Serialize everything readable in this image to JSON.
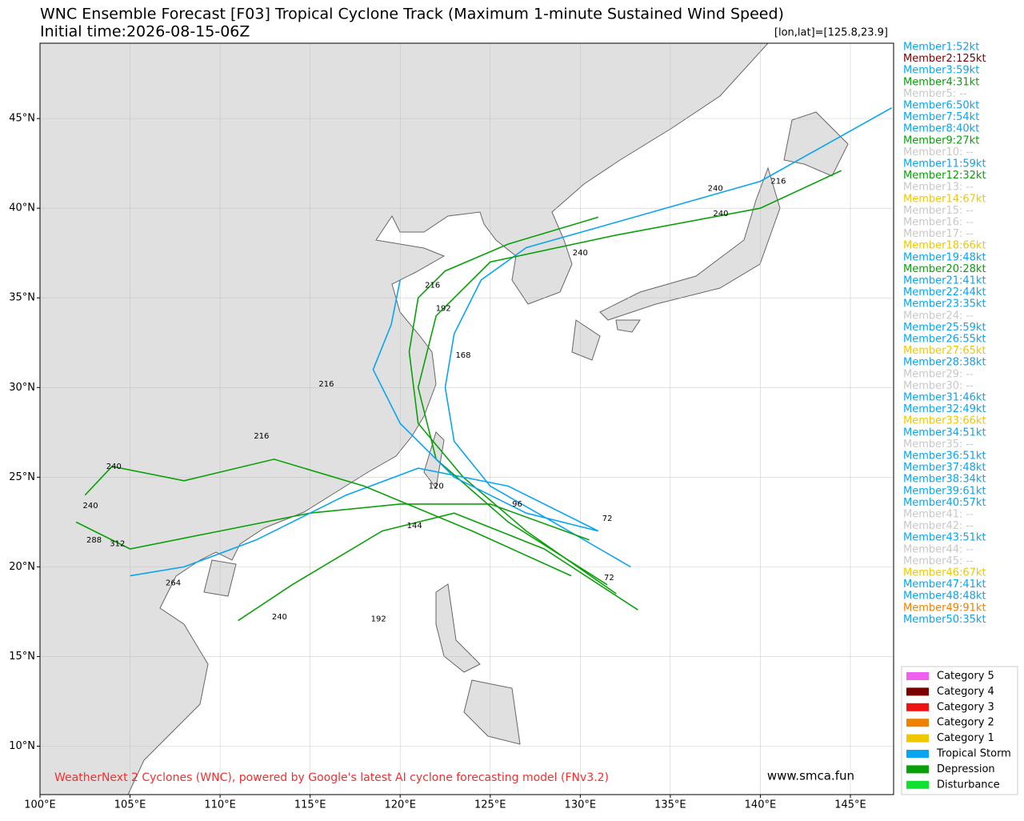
{
  "map": {
    "title": "WNC Ensemble Forecast [F03] Tropical Cyclone Track (Maximum 1-minute Sustained Wind Speed)",
    "subtitle": "Initial time:2026-08-15-06Z",
    "position_note": "[lon,lat]=[125.8,23.9]",
    "credit": "WeatherNext 2 Cyclones (WNC), powered by Google's latest AI cyclone forecasting model (FNv3.2)",
    "website": "www.smca.fun",
    "xlim": [
      100,
      147.4
    ],
    "ylim": [
      7.3,
      49.2
    ],
    "xticks": [
      {
        "value": 100,
        "label": "100°E"
      },
      {
        "value": 105,
        "label": "105°E"
      },
      {
        "value": 110,
        "label": "110°E"
      },
      {
        "value": 115,
        "label": "115°E"
      },
      {
        "value": 120,
        "label": "120°E"
      },
      {
        "value": 125,
        "label": "125°E"
      },
      {
        "value": 130,
        "label": "130°E"
      },
      {
        "value": 135,
        "label": "135°E"
      },
      {
        "value": 140,
        "label": "140°E"
      },
      {
        "value": 145,
        "label": "145°E"
      }
    ],
    "yticks": [
      {
        "value": 10,
        "label": "10°N"
      },
      {
        "value": 15,
        "label": "15°N"
      },
      {
        "value": 20,
        "label": "20°N"
      },
      {
        "value": 25,
        "label": "25°N"
      },
      {
        "value": 30,
        "label": "30°N"
      },
      {
        "value": 35,
        "label": "35°N"
      },
      {
        "value": 40,
        "label": "40°N"
      },
      {
        "value": 45,
        "label": "45°N"
      }
    ],
    "grid": true,
    "tracks": [
      {
        "color": "#0aa5f0",
        "lon": [
          132.8,
          128.5,
          125,
          123,
          122.5,
          123,
          124.5,
          127,
          133,
          140,
          147.3
        ],
        "lat": [
          20,
          22.5,
          24.5,
          27,
          30,
          33,
          36,
          37.8,
          39.5,
          41.5,
          45.6
        ]
      },
      {
        "color": "#0aa00a",
        "lon": [
          132,
          127,
          123.5,
          121,
          120.5,
          121,
          122.5,
          126,
          131
        ],
        "lat": [
          18.5,
          22,
          25,
          28,
          32,
          35,
          36.5,
          38,
          39.5
        ]
      },
      {
        "color": "#0aa00a",
        "lon": [
          130.5,
          125,
          120,
          115,
          110,
          105,
          102
        ],
        "lat": [
          21.5,
          23.5,
          23.5,
          23,
          22,
          21,
          22.5
        ]
      },
      {
        "color": "#0aa5f0",
        "lon": [
          131,
          126,
          121,
          117,
          112,
          108,
          105
        ],
        "lat": [
          22,
          24.5,
          25.5,
          24,
          21.5,
          20,
          19.5
        ]
      },
      {
        "color": "#0aa00a",
        "lon": [
          133.2,
          128,
          123,
          119,
          114,
          111
        ],
        "lat": [
          17.6,
          21,
          23,
          22,
          19,
          17
        ]
      },
      {
        "color": "#0aa00a",
        "lon": [
          131.5,
          126,
          122,
          121,
          122,
          125,
          132,
          140,
          144.5
        ],
        "lat": [
          19,
          22.5,
          26,
          30,
          34,
          37,
          38.5,
          40,
          42.1
        ]
      },
      {
        "color": "#0aa5f0",
        "lon": [
          131,
          127,
          123,
          120,
          118.5,
          119.5,
          120
        ],
        "lat": [
          22,
          23,
          25,
          28,
          31,
          33.5,
          36
        ]
      },
      {
        "color": "#0aa00a",
        "lon": [
          129.5,
          124,
          118,
          113,
          108,
          104,
          102.5
        ],
        "lat": [
          19.5,
          22,
          24.5,
          26,
          24.8,
          25.6,
          24
        ]
      }
    ],
    "hour_labels": [
      {
        "label": "72",
        "lon": 131.5,
        "lat": 22.7
      },
      {
        "label": "72",
        "lon": 131.6,
        "lat": 19.4
      },
      {
        "label": "96",
        "lon": 126.5,
        "lat": 23.5
      },
      {
        "label": "120",
        "lon": 122,
        "lat": 24.5
      },
      {
        "label": "144",
        "lon": 120.8,
        "lat": 22.3
      },
      {
        "label": "168",
        "lon": 123.5,
        "lat": 31.8
      },
      {
        "label": "192",
        "lon": 122.4,
        "lat": 34.4
      },
      {
        "label": "216",
        "lon": 121.8,
        "lat": 35.7
      },
      {
        "label": "240",
        "lon": 130,
        "lat": 37.5
      },
      {
        "label": "240",
        "lon": 137.5,
        "lat": 41.1
      },
      {
        "label": "216",
        "lon": 141,
        "lat": 41.5
      },
      {
        "label": "240",
        "lon": 137.8,
        "lat": 39.7
      },
      {
        "label": "192",
        "lon": 118.8,
        "lat": 17.1
      },
      {
        "label": "240",
        "lon": 113.3,
        "lat": 17.2
      },
      {
        "label": "264",
        "lon": 107.4,
        "lat": 19.1
      },
      {
        "label": "288",
        "lon": 103,
        "lat": 21.5
      },
      {
        "label": "312",
        "lon": 104.3,
        "lat": 21.3
      },
      {
        "label": "240",
        "lon": 102.8,
        "lat": 23.4
      },
      {
        "label": "240",
        "lon": 104.1,
        "lat": 25.6
      },
      {
        "label": "216",
        "lon": 115.9,
        "lat": 30.2
      },
      {
        "label": "216",
        "lon": 112.3,
        "lat": 27.3
      }
    ],
    "members": [
      {
        "label": "Member1:52kt",
        "color": "#0aa5f0"
      },
      {
        "label": "Member2:125kt",
        "color": "#7a0000"
      },
      {
        "label": "Member3:59kt",
        "color": "#0aa5f0"
      },
      {
        "label": "Member4:31kt",
        "color": "#0aa00a"
      },
      {
        "label": "Member5: --",
        "color": "#c8c8c8"
      },
      {
        "label": "Member6:50kt",
        "color": "#0aa5f0"
      },
      {
        "label": "Member7:54kt",
        "color": "#0aa5f0"
      },
      {
        "label": "Member8:40kt",
        "color": "#0aa5f0"
      },
      {
        "label": "Member9:27kt",
        "color": "#0aa00a"
      },
      {
        "label": "Member10: --",
        "color": "#c8c8c8"
      },
      {
        "label": "Member11:59kt",
        "color": "#0aa5f0"
      },
      {
        "label": "Member12:32kt",
        "color": "#0aa00a"
      },
      {
        "label": "Member13: --",
        "color": "#c8c8c8"
      },
      {
        "label": "Member14:67kt",
        "color": "#f0c800"
      },
      {
        "label": "Member15: --",
        "color": "#c8c8c8"
      },
      {
        "label": "Member16: --",
        "color": "#c8c8c8"
      },
      {
        "label": "Member17: --",
        "color": "#c8c8c8"
      },
      {
        "label": "Member18:66kt",
        "color": "#f0c800"
      },
      {
        "label": "Member19:48kt",
        "color": "#0aa5f0"
      },
      {
        "label": "Member20:28kt",
        "color": "#0aa00a"
      },
      {
        "label": "Member21:41kt",
        "color": "#0aa5f0"
      },
      {
        "label": "Member22:44kt",
        "color": "#0aa5f0"
      },
      {
        "label": "Member23:35kt",
        "color": "#0aa5f0"
      },
      {
        "label": "Member24: --",
        "color": "#c8c8c8"
      },
      {
        "label": "Member25:59kt",
        "color": "#0aa5f0"
      },
      {
        "label": "Member26:55kt",
        "color": "#0aa5f0"
      },
      {
        "label": "Member27:65kt",
        "color": "#f0c800"
      },
      {
        "label": "Member28:38kt",
        "color": "#0aa5f0"
      },
      {
        "label": "Member29: --",
        "color": "#c8c8c8"
      },
      {
        "label": "Member30: --",
        "color": "#c8c8c8"
      },
      {
        "label": "Member31:46kt",
        "color": "#0aa5f0"
      },
      {
        "label": "Member32:49kt",
        "color": "#0aa5f0"
      },
      {
        "label": "Member33:66kt",
        "color": "#f0c800"
      },
      {
        "label": "Member34:51kt",
        "color": "#0aa5f0"
      },
      {
        "label": "Member35: --",
        "color": "#c8c8c8"
      },
      {
        "label": "Member36:51kt",
        "color": "#0aa5f0"
      },
      {
        "label": "Member37:48kt",
        "color": "#0aa5f0"
      },
      {
        "label": "Member38:34kt",
        "color": "#0aa5f0"
      },
      {
        "label": "Member39:61kt",
        "color": "#0aa5f0"
      },
      {
        "label": "Member40:57kt",
        "color": "#0aa5f0"
      },
      {
        "label": "Member41: --",
        "color": "#c8c8c8"
      },
      {
        "label": "Member42: --",
        "color": "#c8c8c8"
      },
      {
        "label": "Member43:51kt",
        "color": "#0aa5f0"
      },
      {
        "label": "Member44: --",
        "color": "#c8c8c8"
      },
      {
        "label": "Member45: --",
        "color": "#c8c8c8"
      },
      {
        "label": "Member46:67kt",
        "color": "#f0c800"
      },
      {
        "label": "Member47:41kt",
        "color": "#0aa5f0"
      },
      {
        "label": "Member48:48kt",
        "color": "#0aa5f0"
      },
      {
        "label": "Member49:91kt",
        "color": "#f08000"
      },
      {
        "label": "Member50:35kt",
        "color": "#0aa5f0"
      }
    ],
    "legend": [
      {
        "label": "Category 5",
        "color": "#f060f0"
      },
      {
        "label": "Category 4",
        "color": "#7a0000"
      },
      {
        "label": "Category 3",
        "color": "#f01010"
      },
      {
        "label": "Category 2",
        "color": "#f08000"
      },
      {
        "label": "Category 1",
        "color": "#f0c800"
      },
      {
        "label": "Tropical Storm",
        "color": "#0aa5f0"
      },
      {
        "label": "Depression",
        "color": "#0aa00a"
      },
      {
        "label": "Disturbance",
        "color": "#10e030"
      }
    ]
  }
}
